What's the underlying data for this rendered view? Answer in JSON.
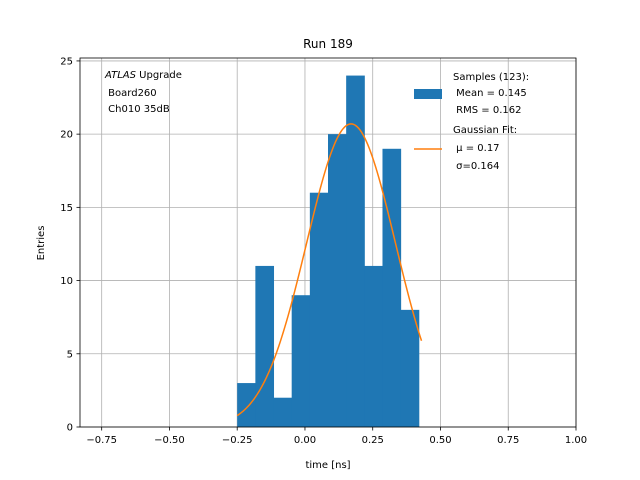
{
  "chart_data": {
    "type": "bar",
    "title": "Run 189",
    "xlabel": "time [ns]",
    "ylabel": "Entries",
    "xlim": [
      -0.83,
      1.0
    ],
    "ylim": [
      0,
      25.2
    ],
    "grid": true,
    "colors": {
      "histogram": "#1f77b4",
      "fit": "#ff7f0e",
      "grid": "#b0b0b0"
    },
    "x_ticks": [
      {
        "value": -0.75,
        "label": "−0.75"
      },
      {
        "value": -0.5,
        "label": "−0.50"
      },
      {
        "value": -0.25,
        "label": "−0.25"
      },
      {
        "value": 0.0,
        "label": "0.00"
      },
      {
        "value": 0.25,
        "label": "0.25"
      },
      {
        "value": 0.5,
        "label": "0.50"
      },
      {
        "value": 0.75,
        "label": "0.75"
      },
      {
        "value": 1.0,
        "label": "1.00"
      }
    ],
    "y_ticks": [
      {
        "value": 0,
        "label": "0"
      },
      {
        "value": 5,
        "label": "5"
      },
      {
        "value": 10,
        "label": "10"
      },
      {
        "value": 15,
        "label": "15"
      },
      {
        "value": 20,
        "label": "20"
      },
      {
        "value": 25,
        "label": "25"
      }
    ],
    "histogram": {
      "name": "Samples (123):",
      "bin_edges": [
        -0.25,
        -0.183,
        -0.116,
        -0.049,
        0.018,
        0.085,
        0.152,
        0.219,
        0.286,
        0.353,
        0.42
      ],
      "counts": [
        3,
        11,
        2,
        9,
        16,
        20,
        24,
        11,
        19,
        8
      ]
    },
    "fit": {
      "name": "Gaussian Fit:",
      "type": "gaussian",
      "mu": 0.17,
      "sigma": 0.164,
      "amplitude": 20.7,
      "x_range": [
        -0.25,
        0.43
      ]
    },
    "legend": {
      "placement": "top-right",
      "entries": [
        {
          "series": "histogram",
          "lines": [
            "Samples (123):",
            " Mean = 0.145",
            " RMS = 0.162"
          ]
        },
        {
          "series": "fit",
          "lines": [
            "Gaussian Fit:",
            " μ = 0.17",
            " σ=0.164"
          ]
        }
      ]
    },
    "annotation": {
      "lines": [
        {
          "italic": "ATLAS",
          "text": " Upgrade"
        },
        {
          "italic": "",
          "text": " Board260"
        },
        {
          "italic": "",
          "text": " Ch010 35dB"
        }
      ]
    }
  }
}
